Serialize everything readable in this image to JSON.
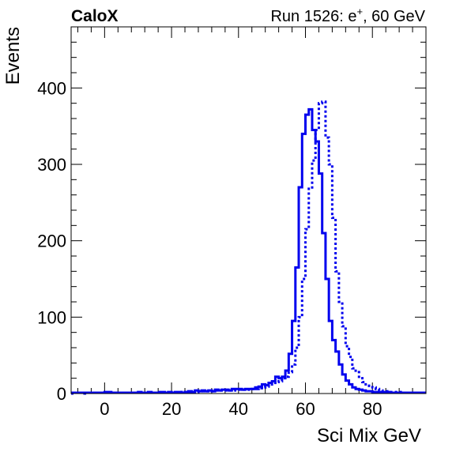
{
  "header": {
    "left": "CaloX",
    "right_prefix": "Run 1526: e",
    "right_sup": "+",
    "right_suffix": ", 60 GeV"
  },
  "chart_data": {
    "type": "histogram",
    "xlabel": "Sci Mix GeV",
    "ylabel": "Events",
    "xlim": [
      -10,
      96
    ],
    "ylim": [
      0,
      480
    ],
    "bin_width": 1,
    "x_ticks": [
      0,
      20,
      40,
      60,
      80
    ],
    "y_ticks": [
      0,
      100,
      200,
      300,
      400
    ],
    "x_tick_labels": [
      "0",
      "20",
      "40",
      "60",
      "80"
    ],
    "y_tick_labels": [
      "0",
      "100",
      "200",
      "300",
      "400"
    ],
    "grid": false,
    "legend": "none",
    "series": [
      {
        "style": "solid",
        "color": "#0000ee",
        "bin_edges_start": -10,
        "values": [
          1,
          1,
          1,
          1,
          1,
          1,
          1,
          1,
          1,
          1,
          2,
          2,
          1,
          1,
          1,
          1,
          1,
          1,
          1,
          1,
          2,
          1,
          1,
          2,
          1,
          1,
          1,
          2,
          1,
          2,
          1,
          2,
          2,
          1,
          2,
          3,
          2,
          4,
          3,
          4,
          3,
          4,
          3,
          5,
          4,
          5,
          5,
          4,
          6,
          6,
          6,
          5,
          6,
          6,
          6,
          8,
          9,
          12,
          11,
          14,
          16,
          22,
          20,
          22,
          30,
          52,
          95,
          165,
          270,
          340,
          365,
          372,
          345,
          330,
          288,
          210,
          150,
          95,
          70,
          55,
          38,
          25,
          17,
          12,
          8,
          6,
          5,
          4,
          3,
          3,
          2,
          2,
          2,
          2,
          2,
          1,
          1,
          1,
          1,
          1,
          1,
          1,
          1,
          1,
          1,
          1
        ]
      },
      {
        "style": "dotted",
        "color": "#0000ee",
        "bin_edges_start": -10,
        "values": [
          0,
          1,
          1,
          1,
          0,
          1,
          1,
          1,
          1,
          1,
          1,
          1,
          1,
          1,
          1,
          1,
          1,
          1,
          1,
          1,
          1,
          1,
          1,
          1,
          1,
          1,
          2,
          1,
          1,
          1,
          1,
          1,
          2,
          1,
          2,
          2,
          2,
          2,
          3,
          3,
          3,
          3,
          3,
          4,
          4,
          4,
          4,
          4,
          4,
          5,
          5,
          5,
          5,
          5,
          6,
          6,
          7,
          8,
          9,
          10,
          12,
          15,
          16,
          20,
          22,
          28,
          38,
          60,
          100,
          150,
          215,
          268,
          305,
          345,
          380,
          382,
          335,
          300,
          230,
          160,
          120,
          88,
          62,
          48,
          33,
          28,
          20,
          15,
          12,
          10,
          8,
          6,
          4,
          3,
          3,
          2,
          2,
          2,
          2,
          1,
          1,
          1,
          1,
          1,
          1,
          1
        ]
      }
    ]
  }
}
